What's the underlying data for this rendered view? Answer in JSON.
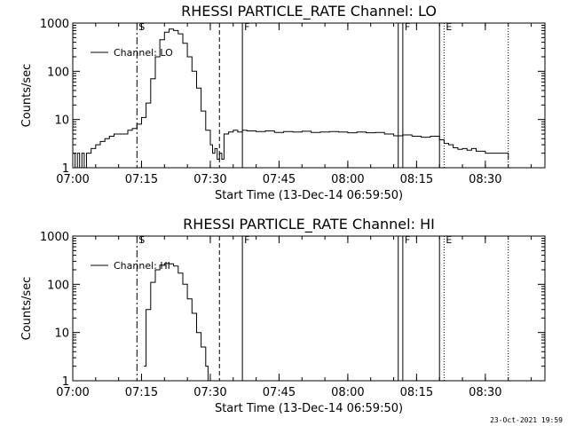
{
  "timestamp": "23-Oct-2021 19:59",
  "chart_data": [
    {
      "type": "line",
      "title": "RHESSI PARTICLE_RATE Channel: LO",
      "ylabel": "Counts/sec",
      "xlabel": "Start Time (13-Dec-14 06:59:50)",
      "yscale": "log",
      "ylim": [
        1,
        1000
      ],
      "xlim": [
        "07:00",
        "08:43"
      ],
      "x_ticks": [
        "07:00",
        "07:15",
        "07:30",
        "07:45",
        "08:00",
        "08:15",
        "08:30"
      ],
      "y_ticks": [
        "1",
        "10",
        "100",
        "1000"
      ],
      "legend": "top-left",
      "series": [
        {
          "name": "Channel: LO",
          "x": [
            "07:00",
            "07:00:30",
            "07:01",
            "07:01:30",
            "07:02",
            "07:02:30",
            "07:03",
            "07:04",
            "07:05",
            "07:06",
            "07:07",
            "07:08",
            "07:09",
            "07:10",
            "07:11",
            "07:12",
            "07:13",
            "07:14",
            "07:15",
            "07:16",
            "07:17",
            "07:18",
            "07:19",
            "07:20",
            "07:21",
            "07:22",
            "07:23",
            "07:24",
            "07:25",
            "07:26",
            "07:27",
            "07:28",
            "07:29",
            "07:30",
            "07:30:30",
            "07:31",
            "07:31:30",
            "07:32",
            "07:32:30",
            "07:33",
            "07:34",
            "07:35",
            "07:36",
            "07:37",
            "07:38",
            "07:40",
            "07:42",
            "07:44",
            "07:46",
            "07:48",
            "07:50",
            "07:52",
            "07:54",
            "07:56",
            "07:58",
            "08:00",
            "08:02",
            "08:04",
            "08:06",
            "08:08",
            "08:10",
            "08:12",
            "08:14",
            "08:16",
            "08:18",
            "08:20",
            "08:21",
            "08:22",
            "08:23",
            "08:24",
            "08:25",
            "08:26",
            "08:27",
            "08:28",
            "08:29",
            "08:30",
            "08:32",
            "08:34",
            "08:35"
          ],
          "y": [
            2,
            1,
            2,
            1,
            2,
            1,
            2,
            2.5,
            3,
            3.5,
            4,
            4.5,
            5,
            5,
            5,
            6,
            6.5,
            8,
            11,
            22,
            70,
            200,
            450,
            650,
            750,
            700,
            600,
            380,
            200,
            100,
            45,
            15,
            6,
            3,
            2,
            2.5,
            1.5,
            2,
            1.5,
            5,
            5.5,
            6,
            5.5,
            6,
            5.8,
            5.6,
            5.8,
            5.4,
            5.6,
            5.5,
            5.7,
            5.4,
            5.5,
            5.6,
            5.5,
            5.3,
            5.5,
            5.3,
            5.4,
            5,
            4.6,
            4.8,
            4.5,
            4.3,
            4.5,
            3.8,
            3.2,
            3,
            2.6,
            2.4,
            2.5,
            2.3,
            2.5,
            2.2,
            2.2,
            2,
            2,
            2,
            1.5
          ]
        }
      ],
      "markers": [
        {
          "time": "07:14",
          "label": "S",
          "style": "dashdot"
        },
        {
          "time": "07:32",
          "label": "",
          "style": "dashed"
        },
        {
          "time": "07:37",
          "label": "F",
          "style": "solid"
        },
        {
          "time": "08:11",
          "label": "",
          "style": "solid"
        },
        {
          "time": "08:12",
          "label": "F",
          "style": "solid"
        },
        {
          "time": "08:20",
          "label": "",
          "style": "solid"
        },
        {
          "time": "08:21",
          "label": "E",
          "style": "dotted"
        },
        {
          "time": "08:35",
          "label": "",
          "style": "dotted"
        }
      ]
    },
    {
      "type": "line",
      "title": "RHESSI PARTICLE_RATE Channel: HI",
      "ylabel": "Counts/sec",
      "xlabel": "Start Time (13-Dec-14 06:59:50)",
      "yscale": "log",
      "ylim": [
        1,
        1000
      ],
      "xlim": [
        "07:00",
        "08:43"
      ],
      "x_ticks": [
        "07:00",
        "07:15",
        "07:30",
        "07:45",
        "08:00",
        "08:15",
        "08:30"
      ],
      "y_ticks": [
        "1",
        "10",
        "100",
        "1000"
      ],
      "legend": "top-left",
      "series": [
        {
          "name": "Channel: HI",
          "x": [
            "07:15:30",
            "07:16",
            "07:17",
            "07:18",
            "07:19",
            "07:20",
            "07:21",
            "07:22",
            "07:23",
            "07:24",
            "07:25",
            "07:26",
            "07:27",
            "07:28",
            "07:29",
            "07:29:30"
          ],
          "y": [
            2,
            30,
            110,
            200,
            250,
            270,
            265,
            240,
            170,
            100,
            50,
            25,
            10,
            5,
            2,
            1
          ]
        }
      ],
      "markers": [
        {
          "time": "07:14",
          "label": "S",
          "style": "dashdot"
        },
        {
          "time": "07:32",
          "label": "",
          "style": "dashed"
        },
        {
          "time": "07:37",
          "label": "F",
          "style": "solid"
        },
        {
          "time": "08:11",
          "label": "",
          "style": "solid"
        },
        {
          "time": "08:12",
          "label": "F",
          "style": "solid"
        },
        {
          "time": "08:20",
          "label": "",
          "style": "solid"
        },
        {
          "time": "08:21",
          "label": "E",
          "style": "dotted"
        },
        {
          "time": "08:35",
          "label": "",
          "style": "dotted"
        }
      ]
    }
  ]
}
